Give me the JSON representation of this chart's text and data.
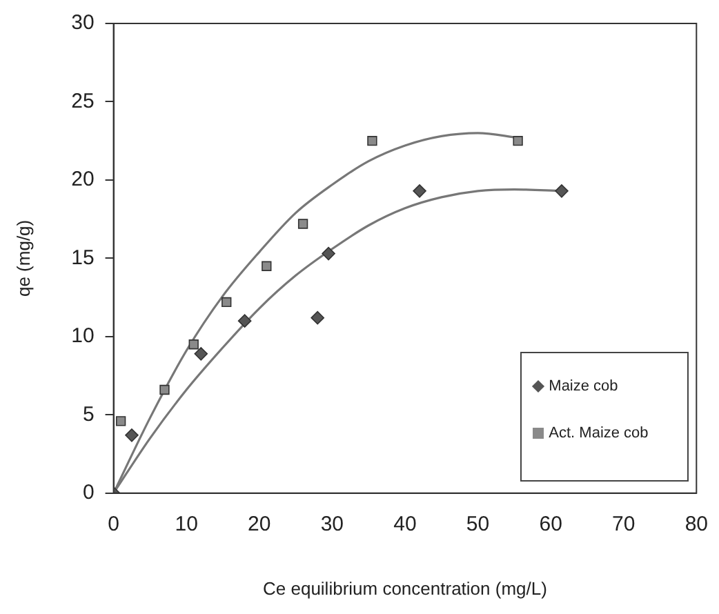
{
  "chart_data": {
    "type": "scatter",
    "xlabel": "Ce equilibrium concentration (mg/L)",
    "ylabel": "qe (mg/g)",
    "xlim": [
      0,
      80
    ],
    "xticks": [
      0,
      10,
      20,
      30,
      40,
      50,
      60,
      70,
      80
    ],
    "ylim": [
      0,
      30
    ],
    "yticks": [
      0,
      5,
      10,
      15,
      20,
      25,
      30
    ],
    "grid": false,
    "legend": "bottom right",
    "series": [
      {
        "name": "Maize cob",
        "color": "#555555",
        "marker": "diamond",
        "x": [
          0,
          2.5,
          12,
          18,
          28,
          29.5,
          42,
          61.5
        ],
        "values": [
          0,
          3.7,
          8.9,
          11,
          11.2,
          15.3,
          19.3,
          19.3
        ]
      },
      {
        "name": "Act. Maize cob",
        "color": "#8a8a8a",
        "marker": "square",
        "x": [
          1,
          7,
          11,
          15.5,
          21,
          26,
          35.5,
          55.5
        ],
        "values": [
          4.6,
          6.6,
          9.5,
          12.2,
          14.5,
          17.2,
          22.5,
          22.5
        ]
      },
      {
        "type": "line",
        "color": "#777777",
        "marker": "none",
        "x": [
          0,
          5,
          10,
          15,
          20,
          25,
          30,
          35,
          40,
          45,
          50,
          55,
          61.5
        ],
        "values": [
          0,
          3.5,
          6.6,
          9.3,
          11.8,
          13.9,
          15.6,
          17.1,
          18.2,
          18.9,
          19.3,
          19.4,
          19.3
        ]
      },
      {
        "type": "line",
        "color": "#777777",
        "marker": "none",
        "x": [
          0,
          5,
          10,
          15,
          20,
          25,
          30,
          35,
          40,
          45,
          50,
          55.5
        ],
        "values": [
          0,
          4.8,
          9.1,
          12.6,
          15.4,
          17.9,
          19.7,
          21.2,
          22.2,
          22.8,
          23,
          22.7
        ]
      }
    ]
  }
}
